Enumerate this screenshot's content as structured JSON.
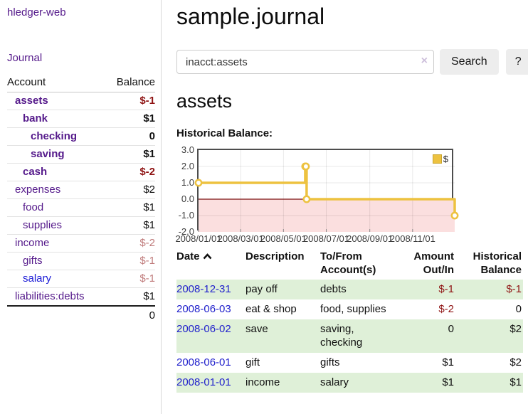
{
  "app": {
    "brand": "hledger-web"
  },
  "sidebar": {
    "nav_journal": "Journal",
    "accounts": {
      "col_account": "Account",
      "col_balance": "Balance",
      "rows": [
        {
          "name": "assets",
          "balance": "$-1",
          "level": 1,
          "bold": true,
          "neg": "strong",
          "link": "visited"
        },
        {
          "name": "bank",
          "balance": "$1",
          "level": 2,
          "bold": true,
          "neg": "none",
          "link": "visited"
        },
        {
          "name": "checking",
          "balance": "0",
          "level": 3,
          "bold": true,
          "neg": "none",
          "link": "visited"
        },
        {
          "name": "saving",
          "balance": "$1",
          "level": 3,
          "bold": true,
          "neg": "none",
          "link": "visited"
        },
        {
          "name": "cash",
          "balance": "$-2",
          "level": 2,
          "bold": true,
          "neg": "strong",
          "link": "visited"
        },
        {
          "name": "expenses",
          "balance": "$2",
          "level": 1,
          "bold": false,
          "neg": "none",
          "link": "visited"
        },
        {
          "name": "food",
          "balance": "$1",
          "level": 2,
          "bold": false,
          "neg": "none",
          "link": "visited"
        },
        {
          "name": "supplies",
          "balance": "$1",
          "level": 2,
          "bold": false,
          "neg": "none",
          "link": "visited"
        },
        {
          "name": "income",
          "balance": "$-2",
          "level": 1,
          "bold": false,
          "neg": "muted",
          "link": "visited"
        },
        {
          "name": "gifts",
          "balance": "$-1",
          "level": 2,
          "bold": false,
          "neg": "muted",
          "link": "visited"
        },
        {
          "name": "salary",
          "balance": "$-1",
          "level": 2,
          "bold": false,
          "neg": "muted",
          "link": "unvisited"
        },
        {
          "name": "liabilities:debts",
          "balance": "$1",
          "level": 1,
          "bold": false,
          "neg": "none",
          "link": "visited"
        }
      ],
      "total": "0"
    }
  },
  "main": {
    "title": "sample.journal",
    "search": {
      "value": "inacct:assets",
      "clear_icon": "×",
      "search_button": "Search",
      "help_button": "?"
    },
    "account_heading": "assets",
    "chart_title": "Historical Balance:"
  },
  "chart_data": {
    "type": "line",
    "step": true,
    "title": "Historical Balance:",
    "series": [
      {
        "name": "$",
        "color": "#edc240",
        "points": [
          [
            "2008-01-01",
            1
          ],
          [
            "2008-06-01",
            2
          ],
          [
            "2008-06-02",
            2
          ],
          [
            "2008-06-03",
            0
          ],
          [
            "2008-12-31",
            -1
          ]
        ]
      }
    ],
    "x_range": [
      "2008-01-01",
      "2008-12-31"
    ],
    "ylim": [
      -2.0,
      3.0
    ],
    "yticks": [
      "3.0",
      "2.0",
      "1.0",
      "0.0",
      "-1.0",
      "-2.0"
    ],
    "xticks": [
      "2008/01/01",
      "2008/03/01",
      "2008/05/01",
      "2008/07/01",
      "2008/09/01",
      "2008/11/01"
    ],
    "legend": {
      "label": "$",
      "position": "top-right"
    },
    "grid": true,
    "zero_line_color": "#7c1010",
    "negative_fill": "#fbdfdf",
    "grid_color": "rgba(0,0,0,0.09)"
  },
  "register": {
    "headers": {
      "date": "Date",
      "description": "Description",
      "accounts": "To/From Account(s)",
      "amount": "Amount Out/In",
      "balance": "Historical Balance"
    },
    "rows": [
      {
        "date": "2008-12-31",
        "description": "pay off",
        "accounts": "debts",
        "amount": "$-1",
        "amount_neg": true,
        "balance": "$-1",
        "balance_neg": true
      },
      {
        "date": "2008-06-03",
        "description": "eat & shop",
        "accounts": "food, supplies",
        "amount": "$-2",
        "amount_neg": true,
        "balance": "0",
        "balance_neg": false
      },
      {
        "date": "2008-06-02",
        "description": "save",
        "accounts": "saving, checking",
        "amount": "0",
        "amount_neg": false,
        "balance": "$2",
        "balance_neg": false
      },
      {
        "date": "2008-06-01",
        "description": "gift",
        "accounts": "gifts",
        "amount": "$1",
        "amount_neg": false,
        "balance": "$2",
        "balance_neg": false
      },
      {
        "date": "2008-01-01",
        "description": "income",
        "accounts": "salary",
        "amount": "$1",
        "amount_neg": false,
        "balance": "$1",
        "balance_neg": false
      }
    ]
  }
}
